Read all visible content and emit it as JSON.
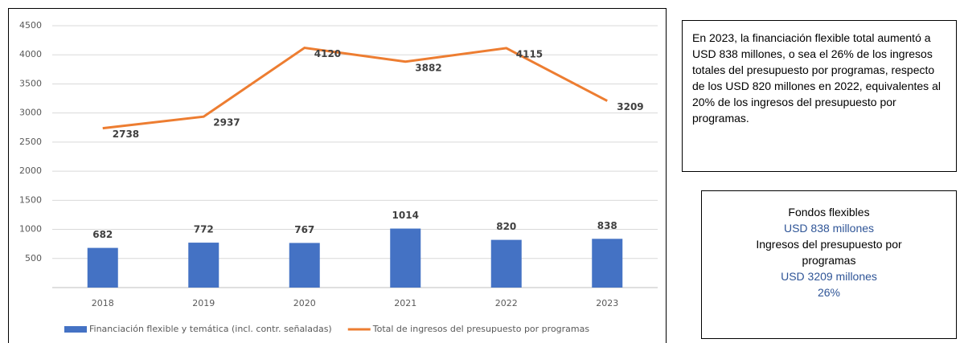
{
  "chart_data": {
    "type": "bar-line",
    "categories": [
      "2018",
      "2019",
      "2020",
      "2021",
      "2022",
      "2023"
    ],
    "series": [
      {
        "name": "Financiación flexible y temática (incl. contr. señaladas)",
        "type": "bar",
        "color": "#4472c4",
        "values": [
          682,
          772,
          767,
          1014,
          820,
          838
        ]
      },
      {
        "name": "Total de ingresos del presupuesto por programas",
        "type": "line",
        "color": "#ed7d31",
        "values": [
          2738,
          2937,
          4120,
          3882,
          4115,
          3209
        ]
      }
    ],
    "ylim": [
      0,
      4500
    ],
    "yticks": [
      500,
      1000,
      1500,
      2000,
      2500,
      3000,
      3500,
      4000,
      4500
    ],
    "grid": true,
    "legend": "bottom"
  },
  "note": "En 2023, la financiación flexible total aumentó a USD 838 millones, o sea el 26% de los ingresos totales del presupuesto por programas, respecto de los USD 820 millones en 2022, equivalentes al 20% de los ingresos del presupuesto por programas.",
  "summary": {
    "label1": "Fondos flexibles",
    "value1": "USD 838 millones",
    "label2": "Ingresos del presupuesto por programas",
    "value2": "USD 3209 millones",
    "share": "26%"
  }
}
